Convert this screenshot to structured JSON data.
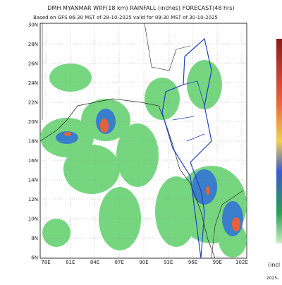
{
  "header": {
    "title": "DMH MYANMAR WRF(18 km) RAINFALL (inches) FORECAST(48 hrs)",
    "subtitle": "Based on GFS 06:30 MST of 28-10-2025 valid for 09:30 MST of 30-10-2025"
  },
  "map": {
    "lat_labels": [
      "30N",
      "28N",
      "26N",
      "24N",
      "22N",
      "20N",
      "18N",
      "16N",
      "14N",
      "12N",
      "10N",
      "8N",
      "6N"
    ],
    "lon_labels": [
      "78E",
      "81E",
      "84E",
      "87E",
      "90E",
      "93E",
      "96E",
      "99E",
      "102E"
    ]
  },
  "colorbar": {
    "unit_label": "(incl",
    "date_label": "2025-"
  }
}
